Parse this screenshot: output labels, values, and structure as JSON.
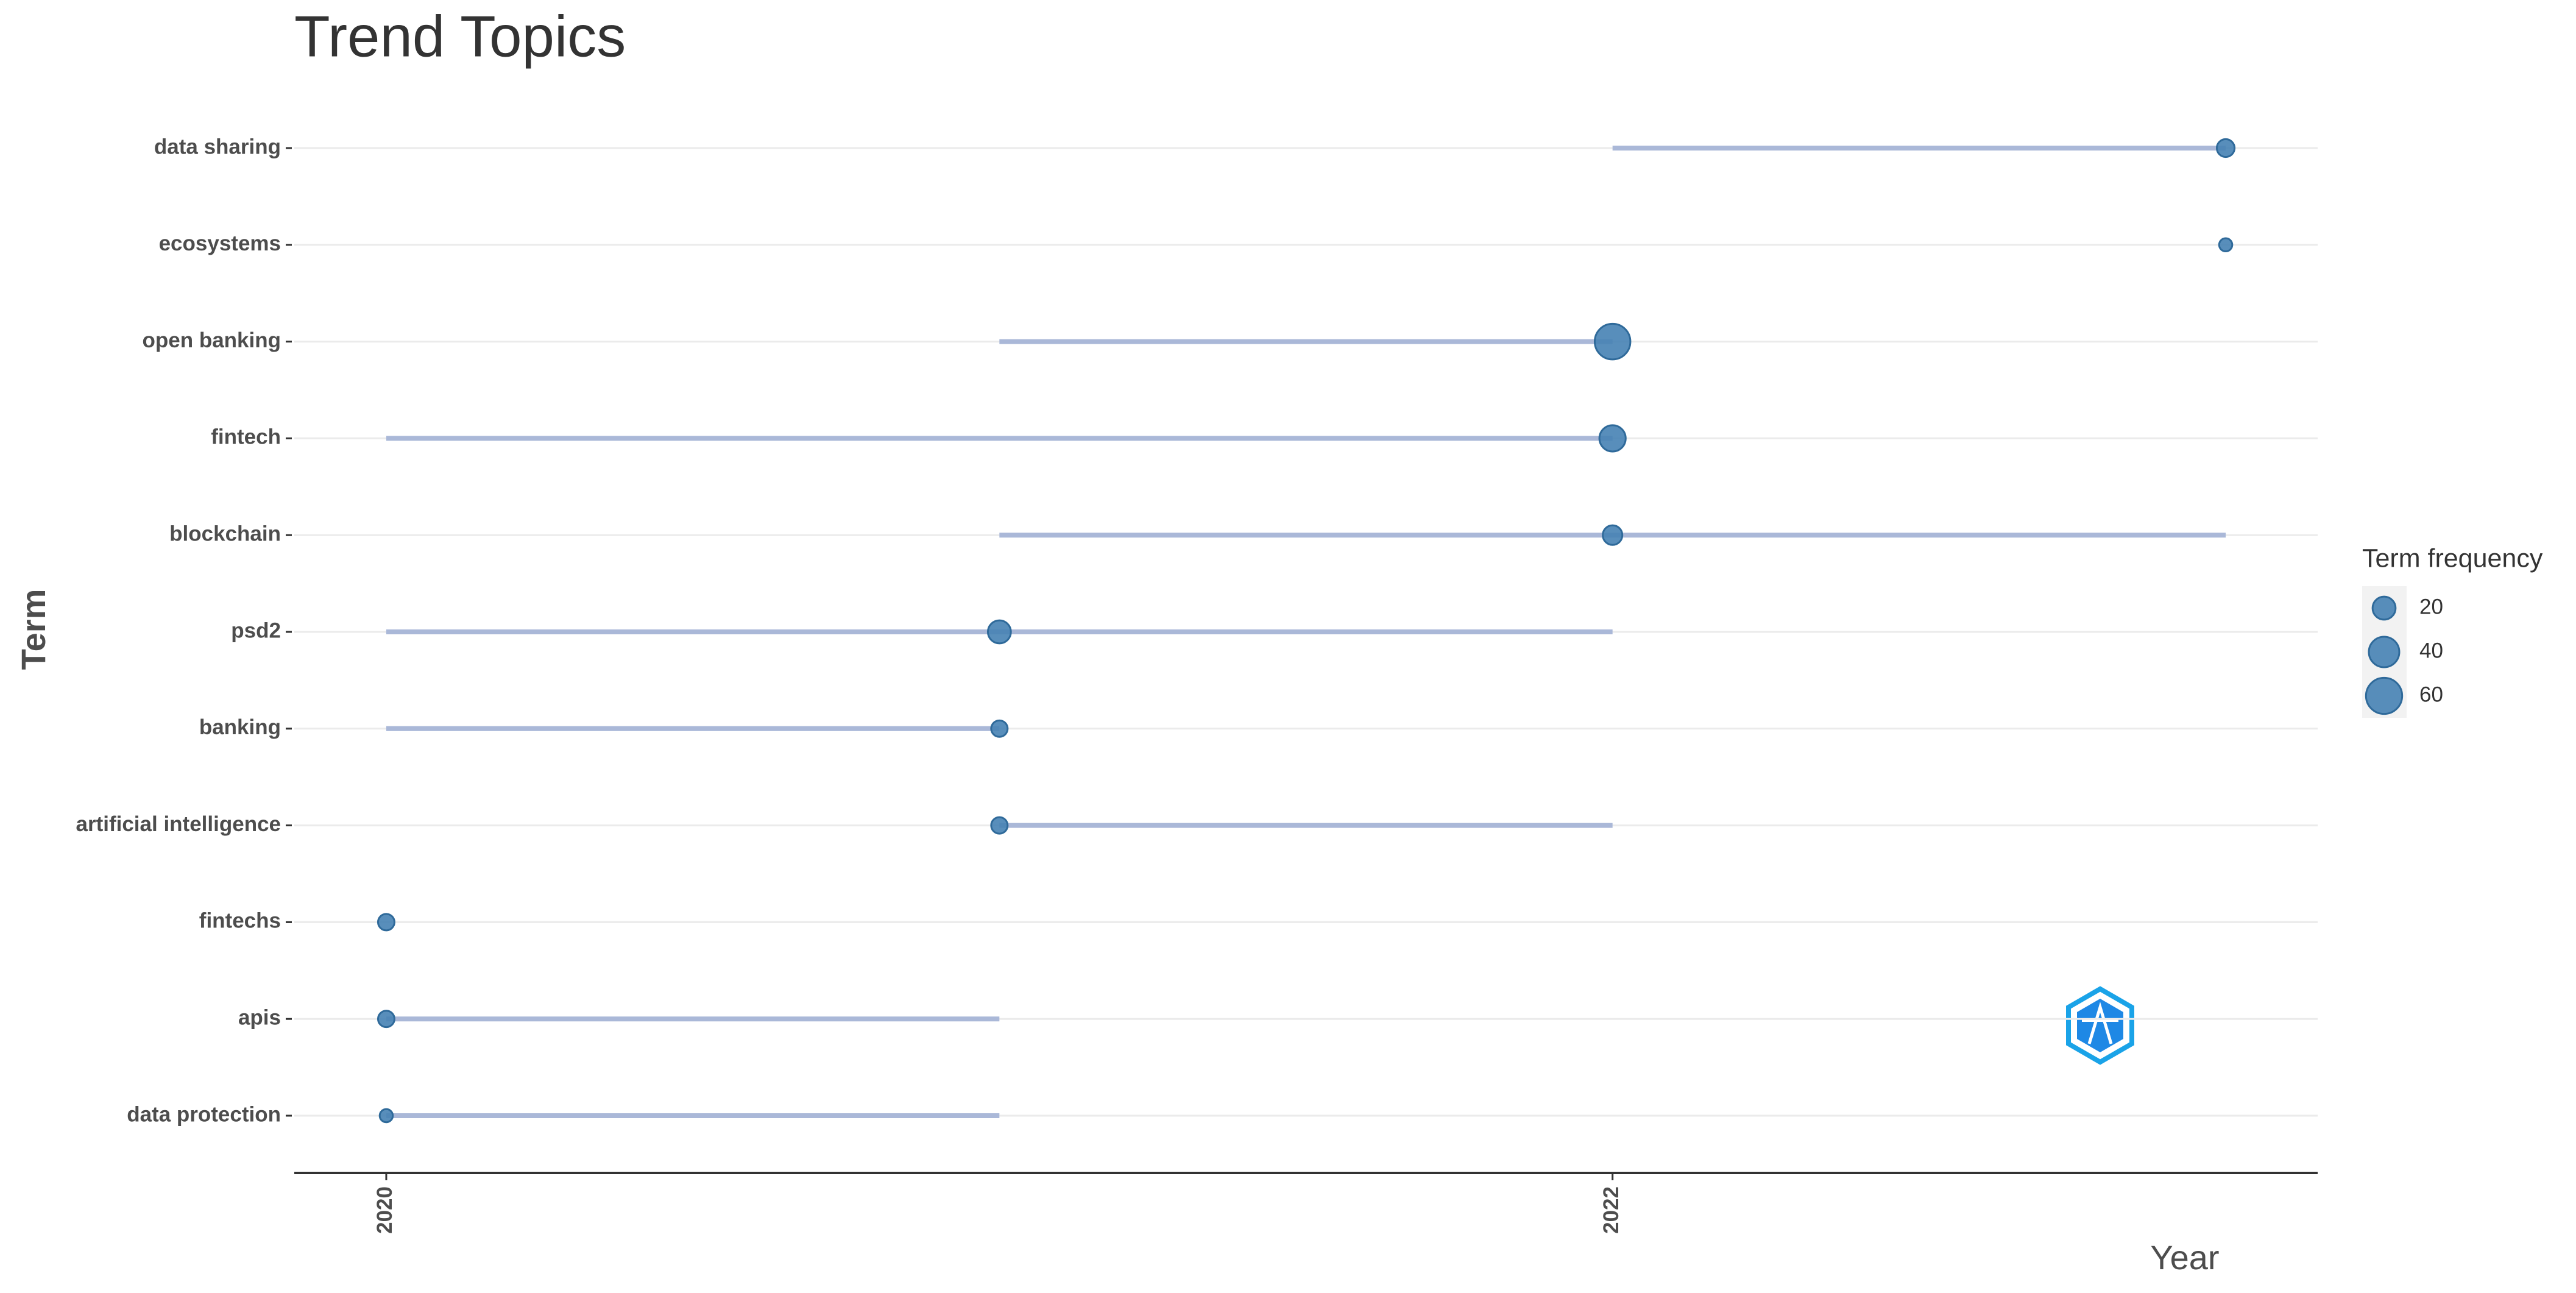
{
  "chart_data": {
    "type": "trend",
    "title": "Trend Topics",
    "y_label": "Term",
    "x_label": "Year",
    "legend_title": "Term frequency",
    "legend_sizes": [
      20,
      40,
      60
    ],
    "color": "#4682b4",
    "line_color": "#aab8d8",
    "categories": [
      "data protection",
      "apis",
      "fintechs",
      "artificial intelligence",
      "banking",
      "psd2",
      "blockchain",
      "fintech",
      "open banking",
      "ecosystems",
      "data sharing"
    ],
    "q1": [
      2020,
      2020,
      2020,
      2021,
      2020,
      2020,
      2021,
      2020,
      2021,
      2023,
      2022
    ],
    "median": [
      2020,
      2020,
      2020,
      2021,
      2021,
      2021,
      2022,
      2022,
      2022,
      2023,
      2023
    ],
    "q3": [
      2021,
      2021,
      2020,
      2022,
      2021,
      2022,
      2023,
      2022,
      2022,
      2023,
      2023
    ],
    "freq": [
      4,
      8,
      8,
      8,
      8,
      20,
      13,
      28,
      58,
      4,
      10
    ],
    "xlim": [
      2019.85,
      2023.15
    ],
    "xticks": [
      2020,
      2022
    ],
    "grid": true
  }
}
